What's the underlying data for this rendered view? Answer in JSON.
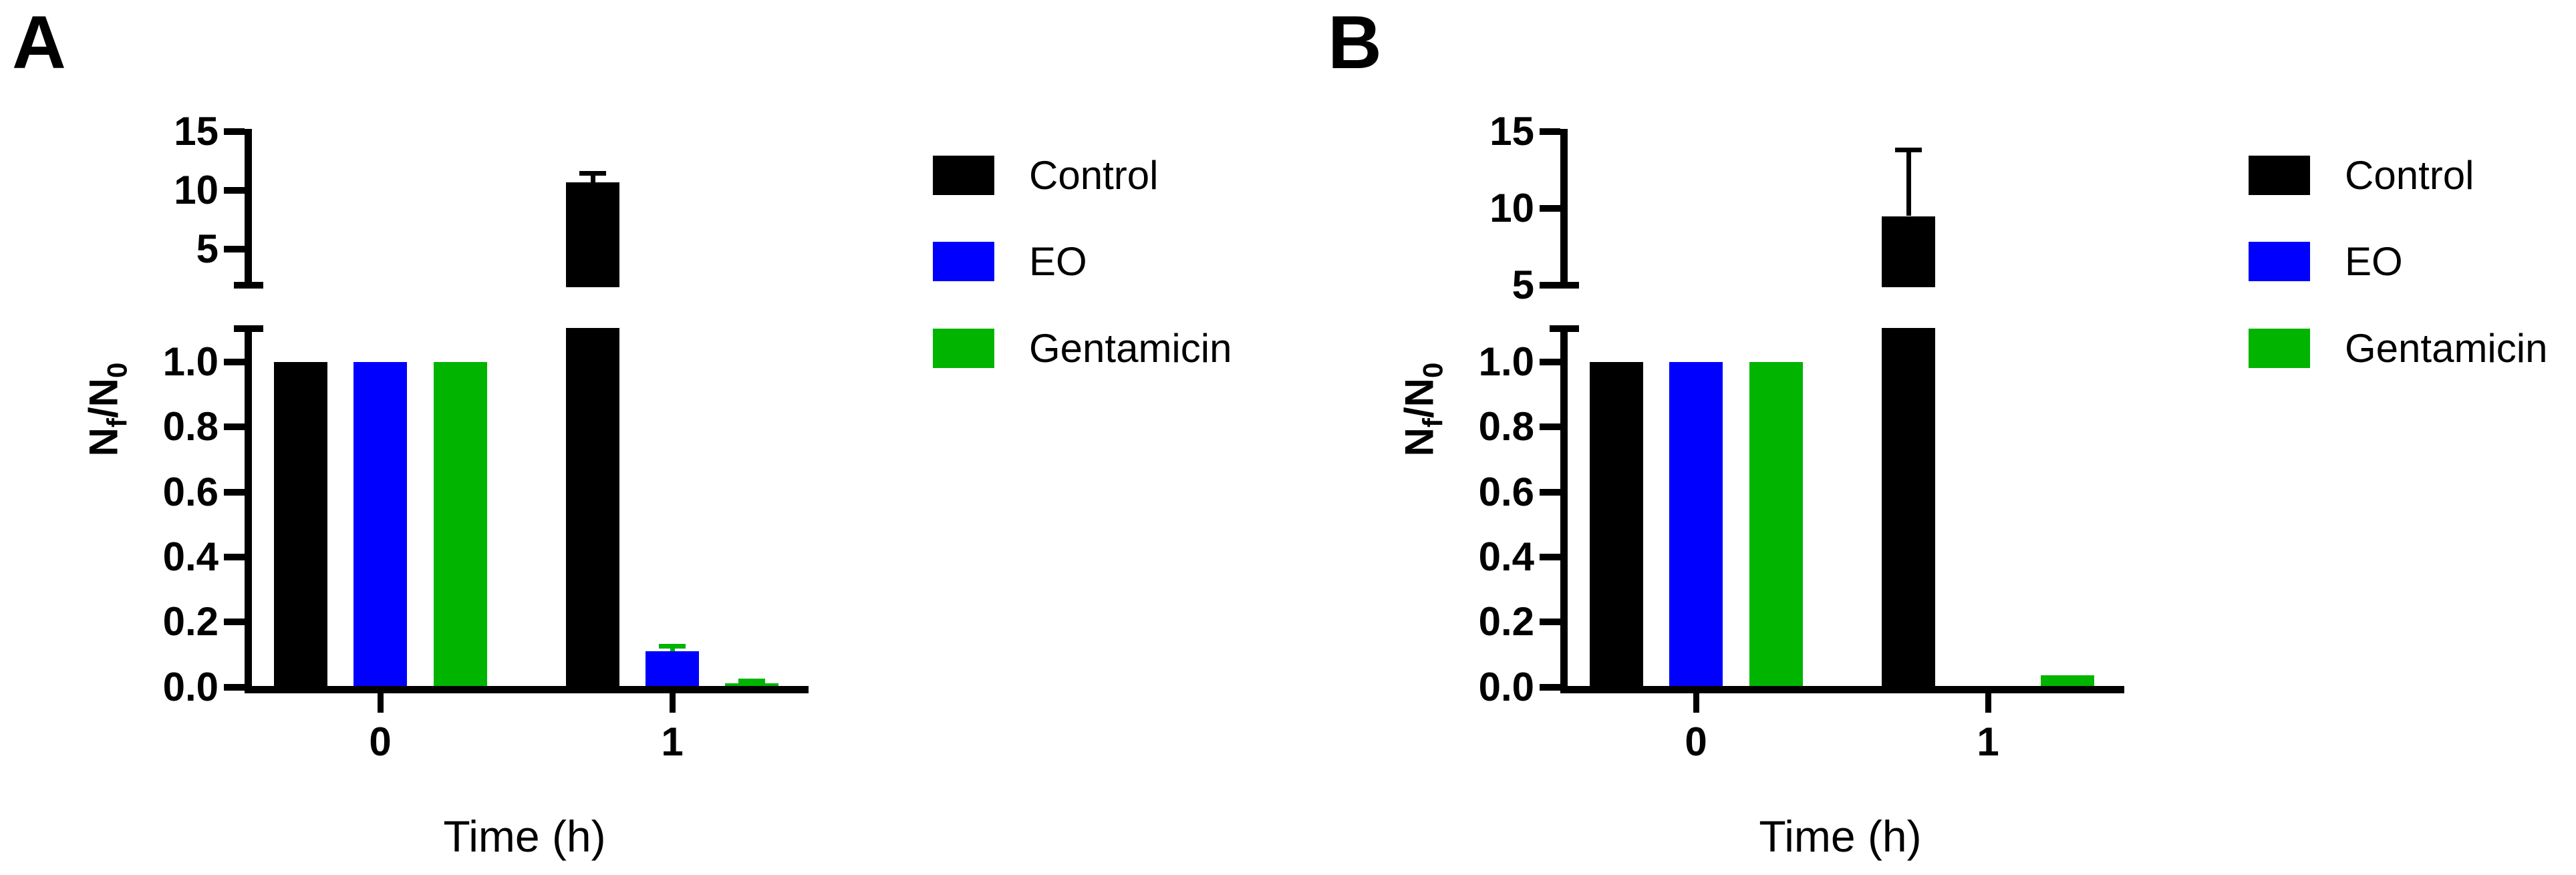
{
  "colors": {
    "control": "#000000",
    "eo": "#0000ff",
    "gentamicin": "#00b400",
    "axis": "#000000"
  },
  "chart_data": [
    {
      "type": "bar",
      "panel_label": "A",
      "title": "",
      "xlabel": "Time (h)",
      "ylabel": "Nf/N0",
      "ylabel_parts": [
        [
          "N",
          false
        ],
        [
          "f",
          true
        ],
        [
          "/N",
          false
        ],
        [
          "0",
          true
        ]
      ],
      "categories": [
        "0",
        "1"
      ],
      "y_axis_break": {
        "lower_ticks": [
          "1.0",
          "0.8",
          "0.6",
          "0.4",
          "0.2",
          "0.0"
        ],
        "upper_ticks": [
          "15",
          "10",
          "5"
        ],
        "lower_range": [
          0,
          1.1
        ],
        "upper_range": [
          1.6,
          15
        ],
        "grid": false
      },
      "legend_position": "right",
      "legend": [
        {
          "name": "Control",
          "color": "#000000"
        },
        {
          "name": "EO",
          "color": "#0000ff"
        },
        {
          "name": "Gentamicin",
          "color": "#00b400"
        }
      ],
      "series": [
        {
          "name": "Control",
          "color": "#000000",
          "values": [
            1.0,
            10.7
          ],
          "errors_plus": [
            0,
            0.75
          ],
          "error_color": "#000000"
        },
        {
          "name": "EO",
          "color": "#0000ff",
          "values": [
            1.0,
            0.11
          ],
          "errors_plus": [
            0,
            0.016
          ],
          "error_color": "#00b400"
        },
        {
          "name": "Gentamicin",
          "color": "#00b400",
          "values": [
            1.0,
            0.012
          ],
          "errors_plus": [
            0,
            0.006
          ],
          "error_color": "#00b400"
        }
      ]
    },
    {
      "type": "bar",
      "panel_label": "B",
      "title": "",
      "xlabel": "Time (h)",
      "ylabel": "Nf/N0",
      "ylabel_parts": [
        [
          "N",
          false
        ],
        [
          "f",
          true
        ],
        [
          "/N",
          false
        ],
        [
          "0",
          true
        ]
      ],
      "categories": [
        "0",
        "1"
      ],
      "y_axis_break": {
        "lower_ticks": [
          "1.0",
          "0.8",
          "0.6",
          "0.4",
          "0.2",
          "0.0"
        ],
        "upper_ticks": [
          "15",
          "10",
          "5"
        ],
        "lower_range": [
          0,
          1.1
        ],
        "upper_range": [
          5,
          15
        ],
        "grid": false
      },
      "legend_position": "right",
      "legend": [
        {
          "name": "Control",
          "color": "#000000"
        },
        {
          "name": "EO",
          "color": "#0000ff"
        },
        {
          "name": "Gentamicin",
          "color": "#00b400"
        }
      ],
      "series": [
        {
          "name": "Control",
          "color": "#000000",
          "values": [
            1.0,
            9.5
          ],
          "errors_plus": [
            0,
            4.3
          ],
          "error_color": "#000000"
        },
        {
          "name": "EO",
          "color": "#0000ff",
          "values": [
            1.0,
            null
          ],
          "errors_plus": [
            0,
            0
          ],
          "error_color": "#00b400"
        },
        {
          "name": "Gentamicin",
          "color": "#00b400",
          "values": [
            1.0,
            0.035
          ],
          "errors_plus": [
            0,
            0
          ],
          "error_color": "#00b400"
        }
      ]
    }
  ]
}
